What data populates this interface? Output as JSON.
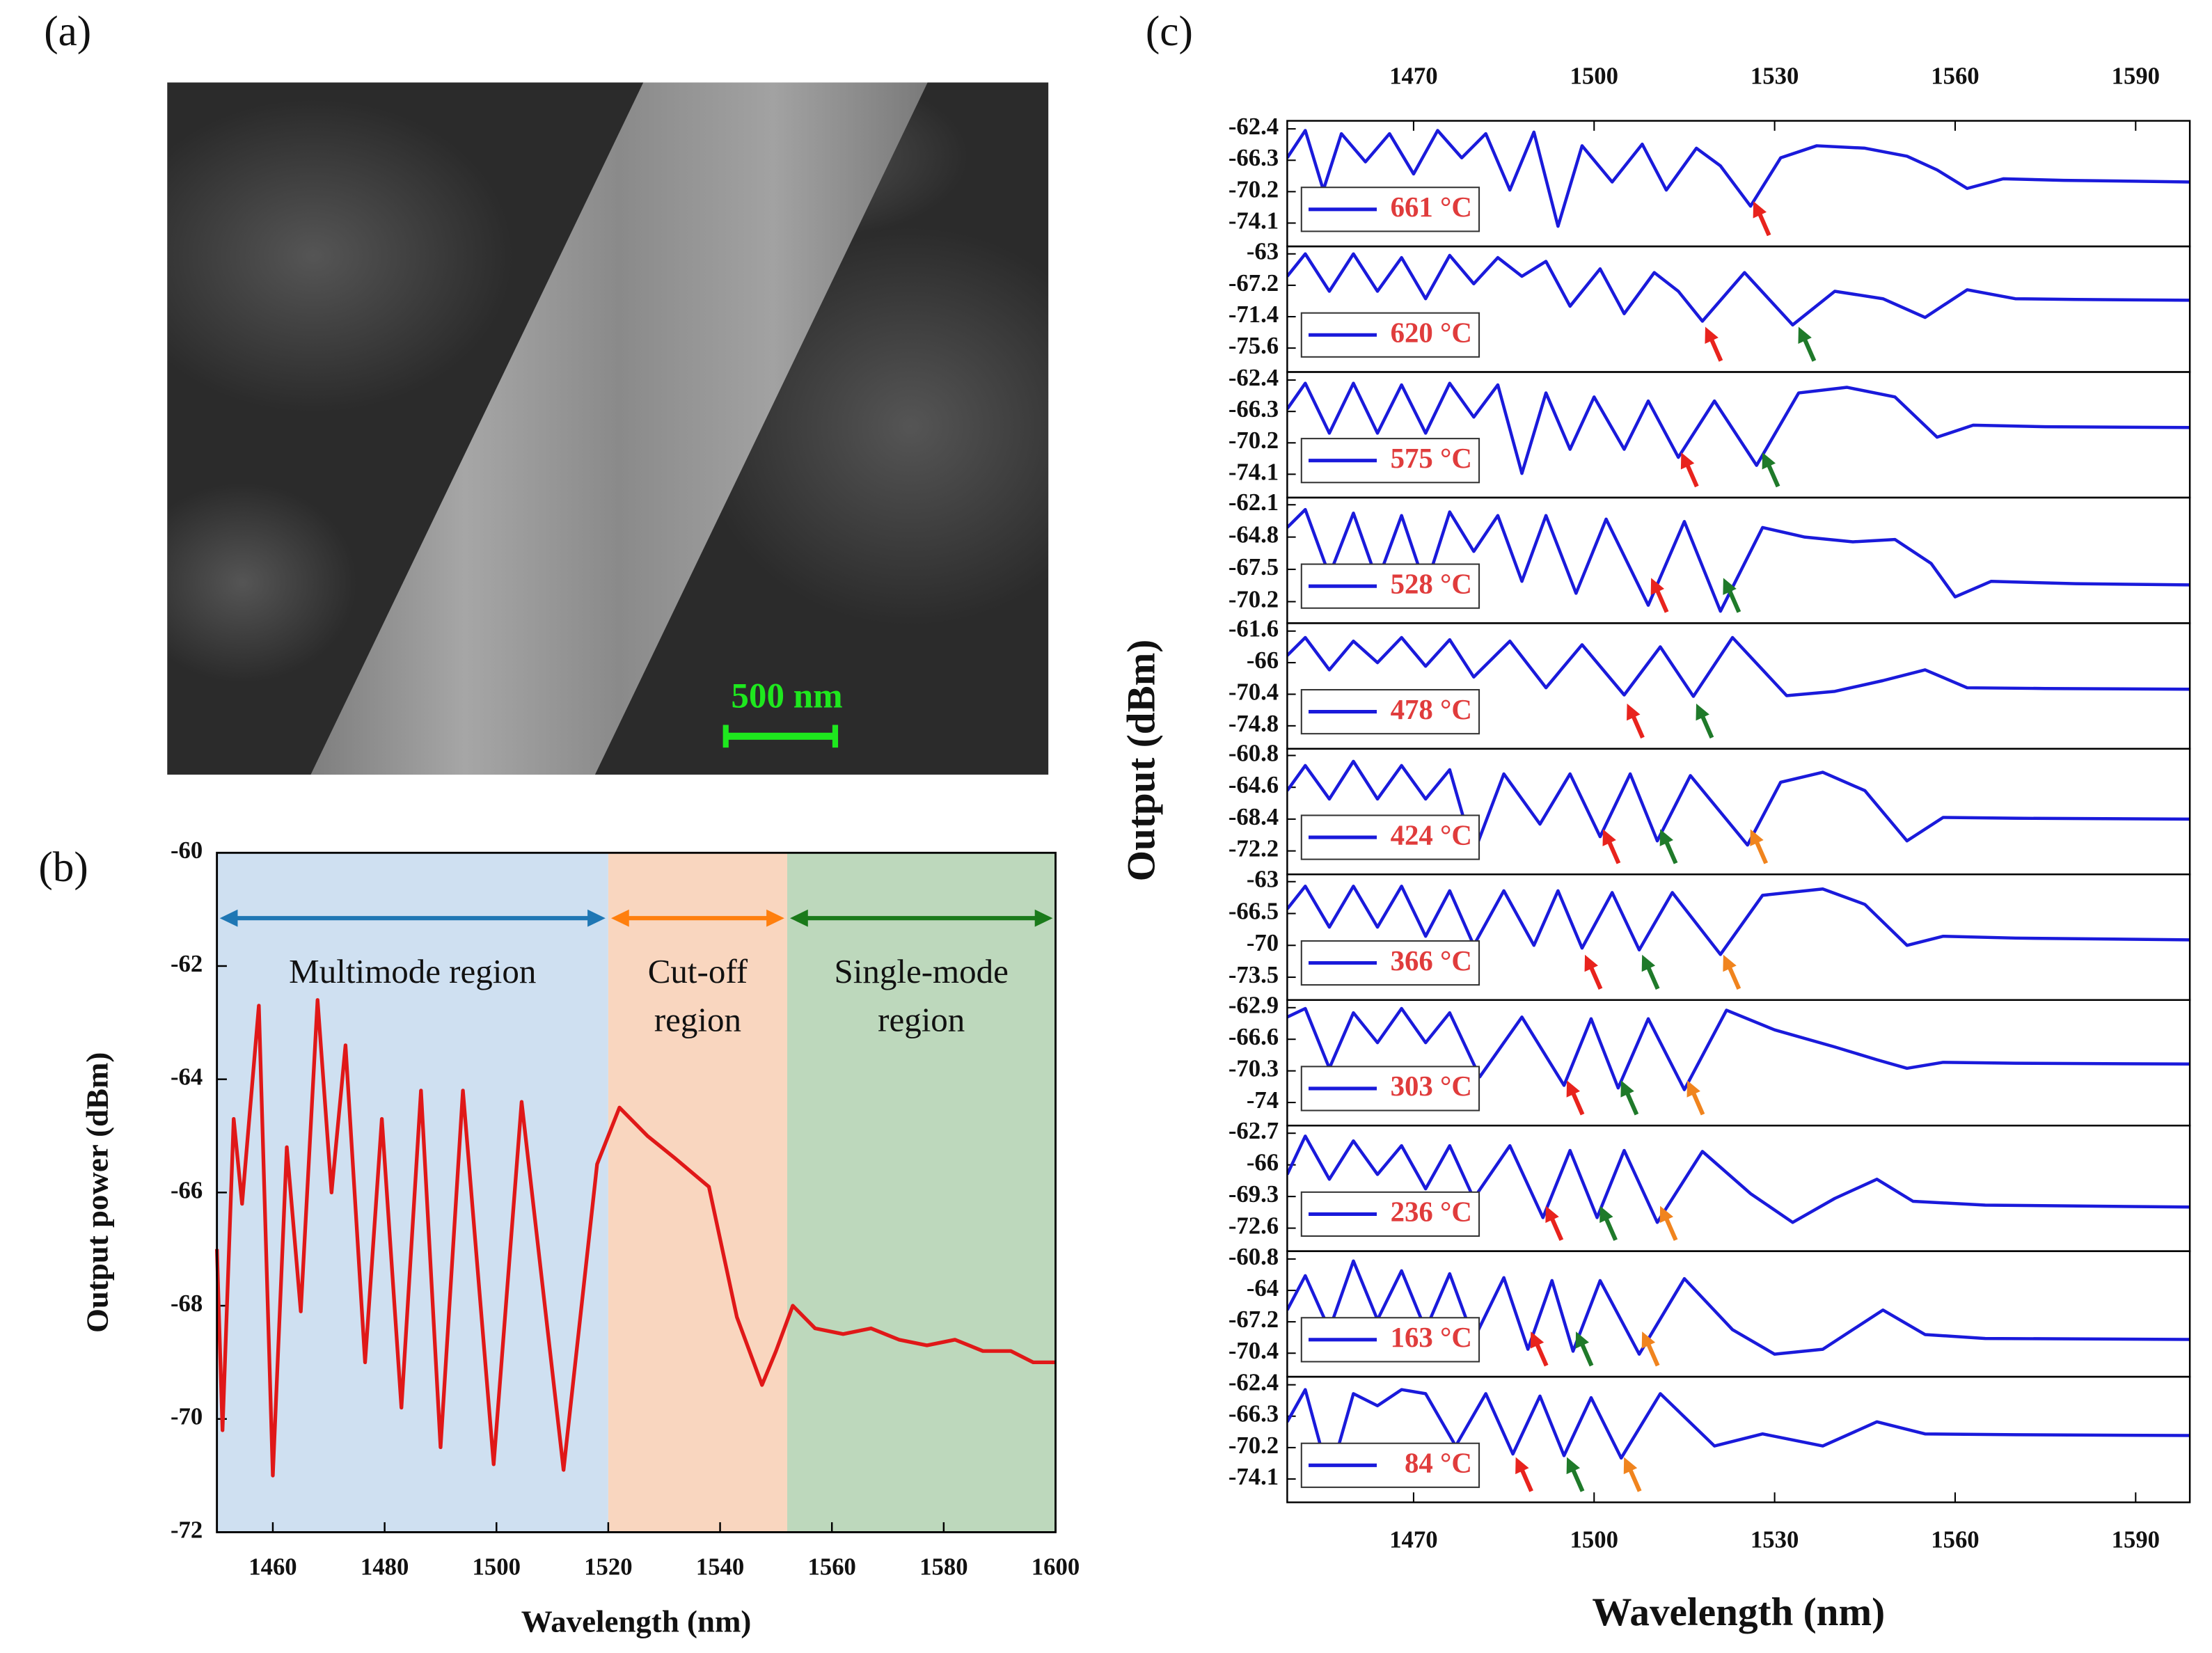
{
  "panel_labels": [
    "(a)",
    "(b)",
    "(c)"
  ],
  "image": {
    "scale_bar_label": "500 nm"
  },
  "chart_data": [
    {
      "type": "line",
      "x_label": "Wavelength (nm)",
      "y_label": "Output power (dBm)",
      "color": "#e01818",
      "xlim": [
        1450,
        1600
      ],
      "ylim": [
        -72,
        -60
      ],
      "xticks": [
        1460,
        1480,
        1500,
        1520,
        1540,
        1560,
        1580,
        1600
      ],
      "yticks": [
        -72,
        -70,
        -68,
        -66,
        -64,
        -62,
        -60
      ],
      "regions": [
        {
          "label": [
            "Multimode region"
          ],
          "x": [
            1450,
            1520
          ],
          "color": "#cfe0f1",
          "arrow_color": "#1f77b4"
        },
        {
          "label": [
            "Cut-off",
            "region"
          ],
          "x": [
            1520,
            1552
          ],
          "color": "#f9d6bf",
          "arrow_color": "#ff7f0e"
        },
        {
          "label": [
            "Single-mode",
            "region"
          ],
          "x": [
            1552,
            1600
          ],
          "color": "#bdd8bc",
          "arrow_color": "#1a7a1a"
        }
      ],
      "x": [
        1450,
        1451,
        1453,
        1454.5,
        1457.5,
        1460,
        1462.5,
        1465,
        1468,
        1470.5,
        1473,
        1476.5,
        1479.5,
        1483,
        1486.5,
        1490,
        1494,
        1499.5,
        1504.5,
        1512,
        1518,
        1522,
        1527,
        1532,
        1538,
        1543,
        1547.5,
        1550,
        1553,
        1557,
        1562,
        1567,
        1572,
        1577,
        1582,
        1587,
        1592,
        1596,
        1600
      ],
      "values": [
        -67,
        -70.2,
        -64.7,
        -66.2,
        -62.7,
        -71,
        -65.2,
        -68.1,
        -62.6,
        -66,
        -63.4,
        -69,
        -64.7,
        -69.8,
        -64.2,
        -70.5,
        -64.2,
        -70.8,
        -64.4,
        -70.9,
        -65.5,
        -64.5,
        -65,
        -65.4,
        -65.9,
        -68.2,
        -69.4,
        -68.8,
        -68,
        -68.4,
        -68.5,
        -68.4,
        -68.6,
        -68.7,
        -68.6,
        -68.8,
        -68.8,
        -69,
        -69
      ]
    },
    {
      "type": "stacked-line",
      "x_label": "Wavelength (nm)",
      "y_label": "Output (dBm)",
      "color": "#1a1adb",
      "xlim": [
        1449,
        1599
      ],
      "xticks": [
        1470,
        1500,
        1530,
        1560,
        1590
      ],
      "subplots": [
        {
          "label": "661 °C",
          "ylim": [
            -77.0,
            -61.4
          ],
          "yticks": [
            -62.4,
            -66.3,
            -70.2,
            -74.1
          ],
          "x": [
            1449,
            1452,
            1455,
            1458,
            1462,
            1466,
            1470,
            1474,
            1478,
            1482,
            1486,
            1490,
            1494,
            1498,
            1503,
            1508,
            1512,
            1517,
            1521,
            1526,
            1531,
            1537,
            1545,
            1552,
            1557,
            1562,
            1568,
            1578,
            1590,
            1599
          ],
          "values": [
            -66,
            -62.6,
            -70,
            -63,
            -66.5,
            -63,
            -68,
            -62.6,
            -66,
            -63,
            -70,
            -62.8,
            -74.5,
            -64.5,
            -69,
            -64.3,
            -70,
            -64.8,
            -67,
            -72,
            -66,
            -64.5,
            -64.8,
            -65.8,
            -67.5,
            -69.8,
            -68.6,
            -68.8,
            -68.9,
            -69
          ],
          "arrows": [
            {
              "x": 1526,
              "color": "#e8231d"
            }
          ]
        },
        {
          "label": "620 °C",
          "ylim": [
            -78.8,
            -62.0
          ],
          "yticks": [
            -63.0,
            -67.2,
            -71.4,
            -75.6
          ],
          "x": [
            1449,
            1452,
            1456,
            1460,
            1464,
            1468,
            1472,
            1476,
            1480,
            1484,
            1488,
            1492,
            1496,
            1501,
            1505,
            1510,
            1514,
            1518,
            1525,
            1533,
            1540,
            1548,
            1555,
            1562,
            1570,
            1580,
            1599
          ],
          "values": [
            -66,
            -63,
            -68,
            -63,
            -68,
            -63.5,
            -69,
            -63.2,
            -67,
            -63.5,
            -66,
            -64,
            -70,
            -65,
            -71,
            -65.5,
            -68,
            -72,
            -65.5,
            -72.5,
            -68,
            -69,
            -71.5,
            -67.8,
            -69,
            -69.1,
            -69.2
          ],
          "arrows": [
            {
              "x": 1518,
              "color": "#e8231d"
            },
            {
              "x": 1533.5,
              "color": "#1f7a2a"
            }
          ]
        },
        {
          "label": "575 °C",
          "ylim": [
            -77.0,
            -61.4
          ],
          "yticks": [
            -62.4,
            -66.3,
            -70.2,
            -74.1
          ],
          "x": [
            1449,
            1452,
            1456,
            1460,
            1464,
            1468,
            1472,
            1476,
            1480,
            1484,
            1488,
            1492,
            1496,
            1500,
            1505,
            1509,
            1514,
            1520,
            1527,
            1534,
            1542,
            1550,
            1557,
            1563,
            1575,
            1599
          ],
          "values": [
            -66,
            -62.8,
            -69,
            -62.8,
            -69,
            -63,
            -69,
            -62.8,
            -67,
            -63,
            -74,
            -64,
            -71,
            -64.5,
            -71,
            -65,
            -72,
            -65,
            -73,
            -64,
            -63.3,
            -64.5,
            -69.5,
            -68,
            -68.2,
            -68.3
          ],
          "arrows": [
            {
              "x": 1514,
              "color": "#e8231d"
            },
            {
              "x": 1527.5,
              "color": "#1f7a2a"
            }
          ]
        },
        {
          "label": "528 °C",
          "ylim": [
            -72.0,
            -61.5
          ],
          "yticks": [
            -62.1,
            -64.8,
            -67.5,
            -70.2
          ],
          "x": [
            1449,
            1452,
            1456,
            1460,
            1464,
            1468,
            1472,
            1476,
            1480,
            1484,
            1488,
            1492,
            1497,
            1502,
            1509,
            1515,
            1521,
            1528,
            1535,
            1543,
            1550,
            1556,
            1560,
            1566,
            1580,
            1599
          ],
          "values": [
            -64,
            -62.5,
            -68,
            -62.8,
            -68.5,
            -63,
            -69,
            -62.7,
            -66,
            -63,
            -68.5,
            -63,
            -69.5,
            -63.3,
            -70.5,
            -63.5,
            -71,
            -64,
            -64.8,
            -65.2,
            -65,
            -67,
            -69.8,
            -68.5,
            -68.7,
            -68.8
          ],
          "arrows": [
            {
              "x": 1509,
              "color": "#e8231d"
            },
            {
              "x": 1521,
              "color": "#1f7a2a"
            }
          ]
        },
        {
          "label": "478 °C",
          "ylim": [
            -78.0,
            -60.5
          ],
          "yticks": [
            -61.6,
            -66.0,
            -70.4,
            -74.8
          ],
          "x": [
            1449,
            1452,
            1456,
            1460,
            1464,
            1468,
            1472,
            1476,
            1480,
            1486,
            1492,
            1498,
            1505,
            1511,
            1516.5,
            1523,
            1532,
            1540,
            1548,
            1555,
            1562,
            1575,
            1599
          ],
          "values": [
            -65,
            -62.5,
            -67,
            -63,
            -66,
            -62.5,
            -66.5,
            -62.8,
            -68,
            -63,
            -69.5,
            -63.5,
            -70.5,
            -63.8,
            -70.7,
            -62.5,
            -70.6,
            -70,
            -68.5,
            -67,
            -69.5,
            -69.6,
            -69.7
          ],
          "arrows": [
            {
              "x": 1505,
              "color": "#e8231d"
            },
            {
              "x": 1516.5,
              "color": "#1f7a2a"
            }
          ]
        },
        {
          "label": "424 °C",
          "ylim": [
            -75.0,
            -60.0
          ],
          "yticks": [
            -60.8,
            -64.6,
            -68.4,
            -72.2
          ],
          "x": [
            1449,
            1452,
            1456,
            1460,
            1464,
            1468,
            1472,
            1476,
            1480,
            1485,
            1491,
            1496,
            1501,
            1506,
            1510.5,
            1516,
            1525.5,
            1531,
            1538,
            1545,
            1552,
            1558,
            1570,
            1599
          ],
          "values": [
            -65,
            -62,
            -66,
            -61.5,
            -66,
            -62,
            -66,
            -62.5,
            -72.5,
            -63,
            -69,
            -63,
            -70.5,
            -63,
            -71,
            -63.2,
            -71.5,
            -64,
            -62.8,
            -65,
            -71,
            -68.2,
            -68.3,
            -68.4
          ],
          "arrows": [
            {
              "x": 1501,
              "color": "#e8231d"
            },
            {
              "x": 1510.5,
              "color": "#1f7a2a"
            },
            {
              "x": 1525.5,
              "color": "#f0841e"
            }
          ]
        },
        {
          "label": "366 °C",
          "ylim": [
            -76.0,
            -62.2
          ],
          "yticks": [
            -63.0,
            -66.5,
            -70.0,
            -73.5
          ],
          "x": [
            1449,
            1452,
            1456,
            1460,
            1464,
            1468,
            1472,
            1476,
            1480,
            1485,
            1490,
            1494,
            1498,
            1503,
            1507.5,
            1513,
            1521,
            1528,
            1538,
            1545,
            1552,
            1558,
            1570,
            1599
          ],
          "values": [
            -66,
            -63.5,
            -68,
            -63.5,
            -68,
            -63.5,
            -69,
            -64,
            -70,
            -64,
            -70,
            -64,
            -70.3,
            -64.2,
            -70.5,
            -64.2,
            -71,
            -64.5,
            -63.8,
            -65.5,
            -70,
            -69,
            -69.2,
            -69.4
          ],
          "arrows": [
            {
              "x": 1498,
              "color": "#e8231d"
            },
            {
              "x": 1507.5,
              "color": "#1f7a2a"
            },
            {
              "x": 1521,
              "color": "#f0841e"
            }
          ]
        },
        {
          "label": "303 °C",
          "ylim": [
            -76.7,
            -62.0
          ],
          "yticks": [
            -62.9,
            -66.6,
            -70.3,
            -74.0
          ],
          "x": [
            1449,
            1452,
            1456,
            1460,
            1464,
            1468,
            1472,
            1476,
            1481,
            1488,
            1495,
            1499.5,
            1504,
            1509,
            1515,
            1522,
            1530,
            1540,
            1547,
            1552,
            1558,
            1570,
            1599
          ],
          "values": [
            -64,
            -63,
            -70,
            -63.5,
            -67,
            -63,
            -67,
            -63.5,
            -71,
            -64,
            -72,
            -64.2,
            -72.3,
            -64.2,
            -72.5,
            -63.2,
            -65.5,
            -67.5,
            -69,
            -70,
            -69.3,
            -69.4,
            -69.5
          ],
          "arrows": [
            {
              "x": 1495,
              "color": "#e8231d"
            },
            {
              "x": 1504,
              "color": "#1f7a2a"
            },
            {
              "x": 1515,
              "color": "#f0841e"
            }
          ]
        },
        {
          "label": "236 °C",
          "ylim": [
            -75.0,
            -61.9
          ],
          "yticks": [
            -62.7,
            -66.0,
            -69.3,
            -72.6
          ],
          "x": [
            1449,
            1452,
            1456,
            1460,
            1464,
            1468,
            1472,
            1476,
            1480,
            1486,
            1491.5,
            1496,
            1500.5,
            1505,
            1510.5,
            1518,
            1526,
            1533,
            1540,
            1547,
            1553,
            1565,
            1599
          ],
          "values": [
            -67,
            -63,
            -67.5,
            -63.5,
            -67,
            -64,
            -68.5,
            -64,
            -69.5,
            -64,
            -71.5,
            -64.5,
            -71.5,
            -64.5,
            -72,
            -64.6,
            -69,
            -72,
            -69.5,
            -67.5,
            -69.8,
            -70.2,
            -70.4
          ],
          "arrows": [
            {
              "x": 1491.5,
              "color": "#e8231d"
            },
            {
              "x": 1500.5,
              "color": "#1f7a2a"
            },
            {
              "x": 1510.5,
              "color": "#f0841e"
            }
          ]
        },
        {
          "label": "163 °C",
          "ylim": [
            -72.8,
            -60.0
          ],
          "yticks": [
            -60.8,
            -64.0,
            -67.2,
            -70.4
          ],
          "x": [
            1449,
            1452,
            1456,
            1460,
            1464,
            1468,
            1472,
            1476,
            1480,
            1485,
            1489,
            1493,
            1496.5,
            1501,
            1507.5,
            1515,
            1523,
            1530,
            1538,
            1548,
            1555,
            1565,
            1599
          ],
          "values": [
            -66,
            -62.5,
            -68,
            -61,
            -67,
            -62,
            -68,
            -62.3,
            -69,
            -62.7,
            -70,
            -63,
            -70.2,
            -63,
            -70.5,
            -62.8,
            -68,
            -70.5,
            -70,
            -66,
            -68.5,
            -68.9,
            -69
          ],
          "arrows": [
            {
              "x": 1489,
              "color": "#e8231d"
            },
            {
              "x": 1496.5,
              "color": "#1f7a2a"
            },
            {
              "x": 1507.5,
              "color": "#f0841e"
            }
          ]
        },
        {
          "label": "84 °C",
          "ylim": [
            -77.0,
            -61.4
          ],
          "yticks": [
            -62.4,
            -66.3,
            -70.2,
            -74.1
          ],
          "x": [
            1449,
            1452,
            1456,
            1460,
            1464,
            1468,
            1472,
            1477,
            1482,
            1486.5,
            1491,
            1495,
            1499.5,
            1504.5,
            1511,
            1520,
            1528,
            1538,
            1547,
            1555,
            1570,
            1599
          ],
          "values": [
            -67,
            -63,
            -74,
            -63.5,
            -65,
            -63,
            -63.5,
            -70,
            -63.5,
            -71,
            -63.8,
            -71.2,
            -64,
            -71.5,
            -63.5,
            -70,
            -68.5,
            -70,
            -67,
            -68.5,
            -68.6,
            -68.7
          ],
          "arrows": [
            {
              "x": 1486.5,
              "color": "#e8231d"
            },
            {
              "x": 1495,
              "color": "#1f7a2a"
            },
            {
              "x": 1504.5,
              "color": "#f0841e"
            }
          ]
        }
      ]
    }
  ]
}
